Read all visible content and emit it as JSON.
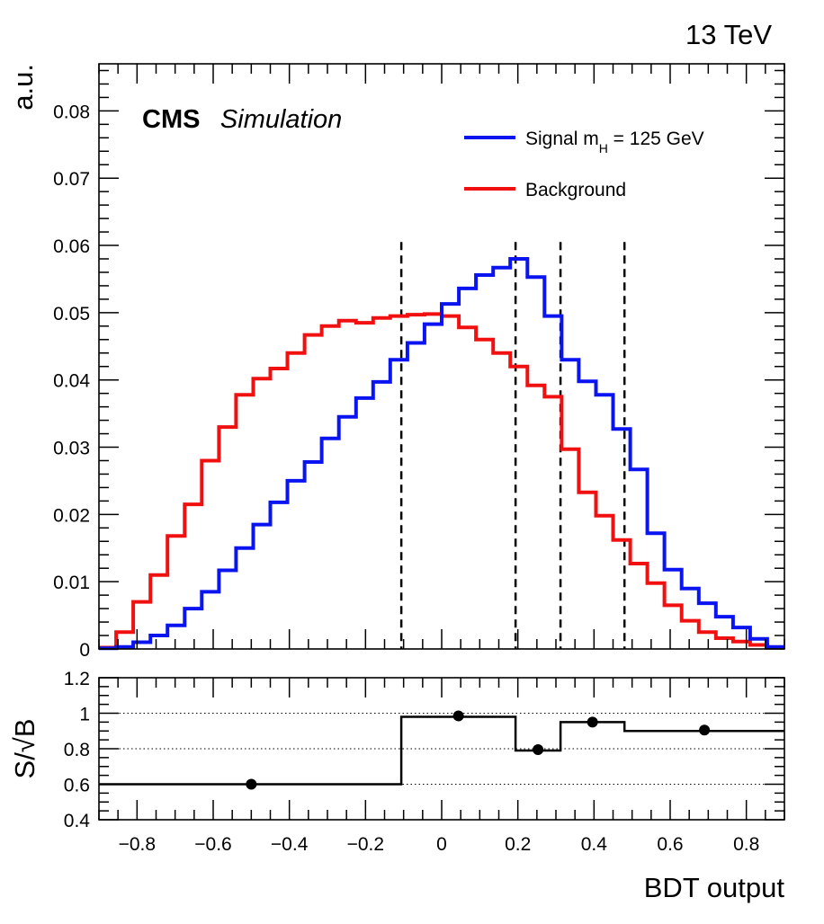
{
  "energy_label": "13 TeV",
  "experiment": {
    "name": "CMS",
    "status": "Simulation"
  },
  "colors": {
    "signal": "#0a14f0",
    "background": "#f01010",
    "ratio": "#000000"
  },
  "chart_data": [
    {
      "type": "line",
      "ylabel": "a.u.",
      "xlim": [
        -0.9,
        0.9
      ],
      "ylim": [
        0,
        0.087
      ],
      "x_ticks": [
        -0.8,
        -0.6,
        -0.4,
        -0.2,
        0,
        0.2,
        0.4,
        0.6,
        0.8
      ],
      "y_ticks": [
        0,
        0.01,
        0.02,
        0.03,
        0.04,
        0.05,
        0.06,
        0.07,
        0.08
      ],
      "y_tick_labels": [
        "0",
        "0.01",
        "0.02",
        "0.03",
        "0.04",
        "0.05",
        "0.06",
        "0.07",
        "0.08"
      ],
      "bin_edges": [
        -0.9,
        -0.855,
        -0.81,
        -0.765,
        -0.72,
        -0.675,
        -0.63,
        -0.585,
        -0.54,
        -0.495,
        -0.45,
        -0.405,
        -0.36,
        -0.315,
        -0.27,
        -0.225,
        -0.18,
        -0.135,
        -0.09,
        -0.045,
        0,
        0.045,
        0.09,
        0.135,
        0.18,
        0.225,
        0.27,
        0.315,
        0.36,
        0.405,
        0.45,
        0.495,
        0.54,
        0.585,
        0.63,
        0.675,
        0.72,
        0.765,
        0.81,
        0.855,
        0.9
      ],
      "series": [
        {
          "name": "Signal m_H = 125 GeV",
          "legend_main": "Signal m",
          "legend_sub": "H",
          "legend_rest": " = 125 GeV",
          "color_key": "signal",
          "values": [
            0.0001,
            0.0003,
            0.001,
            0.002,
            0.0035,
            0.006,
            0.0085,
            0.0117,
            0.015,
            0.0185,
            0.0218,
            0.025,
            0.0278,
            0.0313,
            0.0345,
            0.0373,
            0.0397,
            0.043,
            0.0455,
            0.0483,
            0.0513,
            0.0536,
            0.0556,
            0.0567,
            0.058,
            0.0553,
            0.0495,
            0.043,
            0.0398,
            0.0378,
            0.0327,
            0.0267,
            0.0172,
            0.0118,
            0.009,
            0.0068,
            0.0048,
            0.0032,
            0.0015,
            0.0003
          ]
        },
        {
          "name": "Background",
          "legend_main": "Background",
          "color_key": "background",
          "values": [
            0.0002,
            0.0025,
            0.007,
            0.011,
            0.0168,
            0.0215,
            0.028,
            0.033,
            0.0378,
            0.0402,
            0.0417,
            0.044,
            0.0467,
            0.048,
            0.0488,
            0.0485,
            0.0492,
            0.0495,
            0.0497,
            0.0498,
            0.0495,
            0.0478,
            0.046,
            0.044,
            0.042,
            0.0392,
            0.0375,
            0.0297,
            0.0233,
            0.0198,
            0.0162,
            0.0127,
            0.0098,
            0.0065,
            0.0042,
            0.0025,
            0.0016,
            0.0011,
            0.0006,
            0.0002
          ]
        }
      ],
      "category_boundaries": [
        -0.106,
        0.194,
        0.312,
        0.48
      ]
    },
    {
      "type": "line",
      "ylabel": "S/√B",
      "xlabel": "BDT output",
      "xlim": [
        -0.9,
        0.9
      ],
      "ylim": [
        0.4,
        1.2
      ],
      "x_ticks": [
        -0.8,
        -0.6,
        -0.4,
        -0.2,
        0,
        0.2,
        0.4,
        0.6,
        0.8
      ],
      "x_tick_labels": [
        "−0.8",
        "−0.6",
        "−0.4",
        "−0.2",
        "0",
        "0.2",
        "0.4",
        "0.6",
        "0.8"
      ],
      "y_ticks": [
        0.4,
        0.6,
        0.8,
        1,
        1.2
      ],
      "y_tick_labels": [
        "0.4",
        "0.6",
        "0.8",
        "1",
        "1.2"
      ],
      "grid_y": [
        0.6,
        0.8,
        1.0
      ],
      "bin_edges": [
        -0.9,
        -0.106,
        0.194,
        0.312,
        0.48,
        0.9
      ],
      "values": [
        0.6,
        0.98,
        0.79,
        0.95,
        0.9
      ],
      "points": [
        {
          "x": -0.5,
          "y": 0.6
        },
        {
          "x": 0.044,
          "y": 0.985
        },
        {
          "x": 0.253,
          "y": 0.795
        },
        {
          "x": 0.396,
          "y": 0.95
        },
        {
          "x": 0.69,
          "y": 0.905
        }
      ]
    }
  ]
}
